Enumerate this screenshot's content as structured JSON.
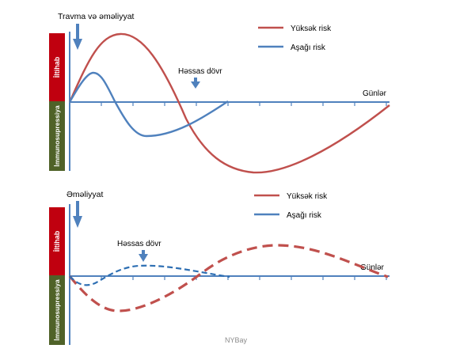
{
  "top_panel": {
    "event_label": "Travma və əməliyyat",
    "inflammation_label": "İltihab",
    "immunosuppression_label": "İmmunosupressiya",
    "sensitive_period_label": "Həssas dövr",
    "x_axis_label": "Günlər",
    "legend": [
      {
        "label": "Yüksək risk",
        "color": "#c0504d"
      },
      {
        "label": "Aşağı risk",
        "color": "#4f81bd"
      }
    ]
  },
  "bottom_panel": {
    "event_label": "Əməliyyat",
    "inflammation_label": "İltihab",
    "immunosuppression_label": "İmmunosupressiya",
    "sensitive_period_label": "Həssas dövr",
    "x_axis_label": "Günlər",
    "legend": [
      {
        "label": "Yüksək risk",
        "color": "#c0504d"
      },
      {
        "label": "Aşağı risk",
        "color": "#4f81bd"
      }
    ]
  },
  "watermark": "NYBay",
  "colors": {
    "high_risk": "#c0504d",
    "low_risk": "#4f81bd",
    "inflammation_bar": "#c0000f",
    "immunosuppression_bar": "#4f6228",
    "axis": "#4f81bd",
    "arrow": "#4f81bd"
  }
}
